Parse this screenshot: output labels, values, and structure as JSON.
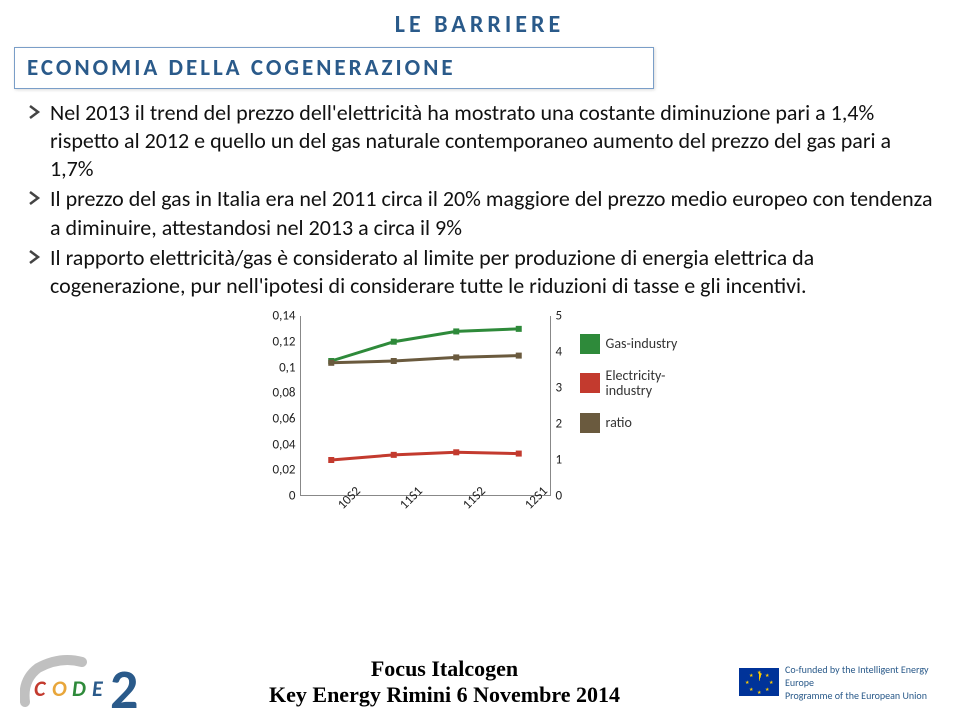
{
  "page": {
    "title": "LE BARRIERE",
    "section_title": "ECONOMIA DELLA COGENERAZIONE"
  },
  "bullets": [
    "Nel 2013 il trend del prezzo dell'elettricità ha mostrato una costante diminuzione pari a 1,4% rispetto al 2012 e quello un del gas naturale contemporaneo aumento del  prezzo del gas pari a 1,7%",
    "Il prezzo del gas in Italia era nel 2011 circa il 20% maggiore del  prezzo medio europeo con tendenza a diminuire, attestandosi nel 2013 a circa il 9%",
    "Il rapporto elettricità/gas  è considerato al limite per produzione di energia elettrica da cogenerazione, pur nell'ipotesi di considerare tutte le riduzioni di tasse e gli incentivi."
  ],
  "chart": {
    "type": "line+ratio",
    "yl_ticks": [
      "0",
      "0,02",
      "0,04",
      "0,06",
      "0,08",
      "0,1",
      "0,12",
      "0,14"
    ],
    "yl_max": 0.14,
    "yr_ticks": [
      "0",
      "1",
      "2",
      "3",
      "4",
      "5"
    ],
    "yr_max": 5,
    "x_labels": [
      "10S2",
      "11S1",
      "11S2",
      "12S1"
    ],
    "series": {
      "gas": {
        "color": "#2e8a3a",
        "label": "Gas-industry",
        "values": [
          0.105,
          0.12,
          0.128,
          0.13
        ]
      },
      "elec": {
        "color": "#c33a2e",
        "label": "Electricity-industry",
        "values": [
          0.028,
          0.032,
          0.034,
          0.033
        ]
      },
      "ratio": {
        "color": "#6a5a3e",
        "label": "ratio",
        "values": [
          3.7,
          3.75,
          3.85,
          3.9
        ]
      }
    },
    "axis_color": "#888",
    "tick_fontsize": 13,
    "legend_fontsize": 14
  },
  "footer": {
    "line1": "Focus  Italcogen",
    "line2": "Key Energy  Rimini 6 Novembre 2014",
    "eu_text1": "Co-funded by the Intelligent Energy Europe",
    "eu_text2": "Programme of the European Union"
  },
  "logo": {
    "letters": [
      "C",
      "O",
      "D",
      "E"
    ],
    "colors": [
      "#c33a2e",
      "#e8a63a",
      "#2e8a3a",
      "#2a5a8a"
    ],
    "big2_color": "#2a5a8a"
  }
}
